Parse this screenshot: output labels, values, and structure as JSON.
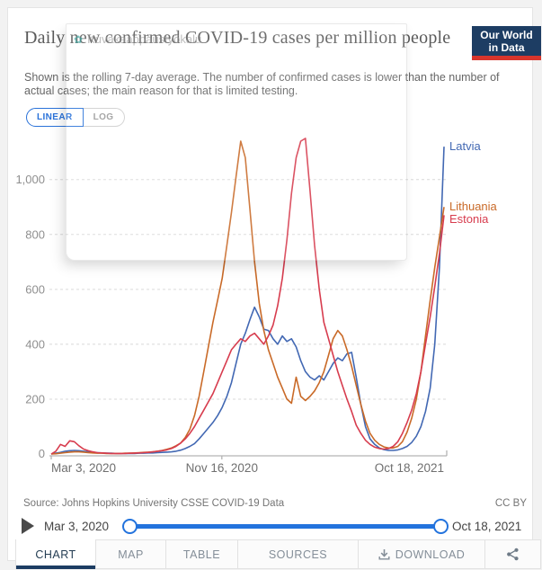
{
  "header": {
    "title": "Daily new confirmed COVID-19 cases per million people",
    "subtitle": "Shown is the rolling 7-day average. The number of confirmed cases is lower than the number of actual cases; the main reason for that is limited testing.",
    "logo_line1": "Our World",
    "logo_line2": "in Data"
  },
  "watermark": {
    "label": "Kuvakaappaustyökalu",
    "icon": "screenshot-tool-icon"
  },
  "toggle": {
    "linear_label": "LINEAR",
    "log_label": "LOG"
  },
  "chart_data": {
    "type": "line",
    "title": "Daily new confirmed COVID-19 cases per million people",
    "xlabel": "",
    "ylabel": "",
    "x_range": [
      "Mar 3, 2020",
      "Oct 18, 2021"
    ],
    "x_domain_days": 594,
    "ylim": [
      0,
      1150
    ],
    "grid": "horizontal-dashed",
    "legend_position": "right-end-of-line",
    "y_ticks": [
      {
        "value": 0,
        "label": "0"
      },
      {
        "value": 200,
        "label": "200"
      },
      {
        "value": 400,
        "label": "400"
      },
      {
        "value": 600,
        "label": "600"
      },
      {
        "value": 800,
        "label": "800"
      },
      {
        "value": 1000,
        "label": "1,000"
      }
    ],
    "x_ticks": [
      {
        "day": 0,
        "label": "Mar 3, 2020",
        "anchor": "start"
      },
      {
        "day": 258,
        "label": "Nov 16, 2020",
        "anchor": "middle"
      },
      {
        "day": 594,
        "label": "Oct 18, 2021",
        "anchor": "end"
      }
    ],
    "series": [
      {
        "name": "Latvia",
        "color": "#4268b3",
        "values": [
          0,
          3,
          6,
          10,
          12,
          13,
          12,
          10,
          8,
          6,
          5,
          4,
          3,
          3,
          2,
          2,
          2,
          2,
          2,
          3,
          3,
          4,
          4,
          5,
          6,
          7,
          8,
          10,
          14,
          20,
          28,
          38,
          55,
          75,
          95,
          115,
          140,
          170,
          210,
          260,
          330,
          400,
          440,
          490,
          535,
          500,
          455,
          450,
          420,
          400,
          430,
          410,
          420,
          390,
          340,
          300,
          280,
          270,
          285,
          270,
          300,
          330,
          350,
          340,
          365,
          370,
          280,
          180,
          100,
          55,
          35,
          22,
          16,
          13,
          13,
          15,
          20,
          28,
          42,
          65,
          100,
          155,
          240,
          400,
          680,
          1120
        ]
      },
      {
        "name": "Lithuania",
        "color": "#c96a28",
        "values": [
          0,
          1,
          3,
          5,
          7,
          8,
          8,
          7,
          5,
          4,
          3,
          3,
          2,
          2,
          2,
          2,
          3,
          3,
          4,
          5,
          6,
          7,
          8,
          10,
          13,
          17,
          22,
          30,
          40,
          60,
          90,
          140,
          210,
          300,
          390,
          480,
          560,
          640,
          760,
          880,
          1010,
          1140,
          1080,
          890,
          700,
          550,
          450,
          380,
          330,
          280,
          240,
          200,
          185,
          280,
          210,
          195,
          210,
          230,
          260,
          300,
          360,
          420,
          450,
          430,
          380,
          320,
          250,
          180,
          120,
          75,
          50,
          35,
          26,
          22,
          22,
          28,
          45,
          80,
          130,
          200,
          300,
          430,
          560,
          680,
          790,
          900
        ]
      },
      {
        "name": "Estonia",
        "color": "#d73c4e",
        "values": [
          0,
          10,
          35,
          28,
          48,
          45,
          30,
          18,
          12,
          8,
          5,
          4,
          3,
          2,
          2,
          2,
          2,
          3,
          3,
          4,
          5,
          6,
          8,
          10,
          12,
          15,
          20,
          28,
          40,
          55,
          75,
          100,
          130,
          160,
          190,
          220,
          260,
          300,
          340,
          380,
          400,
          420,
          410,
          430,
          440,
          420,
          400,
          430,
          470,
          540,
          640,
          780,
          950,
          1080,
          1140,
          1150,
          960,
          760,
          600,
          480,
          420,
          360,
          300,
          250,
          200,
          155,
          105,
          75,
          50,
          35,
          25,
          20,
          18,
          20,
          28,
          45,
          75,
          115,
          160,
          220,
          300,
          400,
          500,
          610,
          730,
          870
        ]
      }
    ]
  },
  "footer": {
    "source": "Source: Johns Hopkins University CSSE COVID-19 Data",
    "license": "CC BY"
  },
  "timeline": {
    "start": "Mar 3, 2020",
    "end": "Oct 18, 2021"
  },
  "tabs": [
    {
      "label": "CHART",
      "active": true
    },
    {
      "label": "MAP",
      "active": false
    },
    {
      "label": "TABLE",
      "active": false
    },
    {
      "label": "SOURCES",
      "active": false
    },
    {
      "label": "DOWNLOAD",
      "active": false,
      "icon": "download-icon"
    },
    {
      "label": "",
      "active": false,
      "icon": "share-icon"
    }
  ],
  "colors": {
    "slider_blue": "#2373dd",
    "logo_navy": "#1d3d63",
    "logo_red": "#d8352c",
    "tab_underline_navy": "#1d3d63",
    "linear_toggle_blue": "#2a72d9"
  }
}
